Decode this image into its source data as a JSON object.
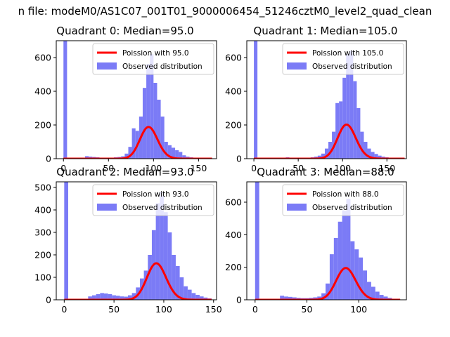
{
  "figure": {
    "suptitle": "n file: modeM0/AS1C07_001T01_9000006454_51246cztM0_level2_quad_clean"
  },
  "colors": {
    "histogram": "#7b7bf6",
    "poisson": "#ff0000",
    "axis": "#000000"
  },
  "chart_data": [
    {
      "type": "bar",
      "title": "Quadrant 0: Median=95.0",
      "xlim": [
        -8,
        170
      ],
      "ylim": [
        0,
        700
      ],
      "xticks": [
        0,
        50,
        100,
        150
      ],
      "yticks": [
        0,
        200,
        400,
        600
      ],
      "bin_width": 4,
      "hist": {
        "name": "Observed distribution",
        "x": [
          0,
          24,
          28,
          32,
          36,
          40,
          44,
          48,
          52,
          56,
          60,
          64,
          68,
          72,
          76,
          80,
          84,
          88,
          92,
          96,
          100,
          104,
          108,
          112,
          116,
          120,
          124,
          128,
          132,
          136,
          140,
          144,
          148,
          152,
          156,
          160
        ],
        "values": [
          700,
          15,
          12,
          10,
          8,
          6,
          5,
          5,
          6,
          8,
          10,
          14,
          30,
          70,
          180,
          165,
          250,
          420,
          560,
          620,
          450,
          350,
          250,
          100,
          80,
          65,
          50,
          40,
          20,
          12,
          8,
          6,
          4,
          3,
          2,
          1
        ]
      },
      "poisson": {
        "name": "Poission with 95.0",
        "lambda": 95.0,
        "scale": 4600,
        "x_range": [
          0,
          165
        ]
      },
      "legend": "top-right"
    },
    {
      "type": "bar",
      "title": "Quadrant 1: Median=105.0",
      "xlim": [
        -8,
        172
      ],
      "ylim": [
        0,
        700
      ],
      "xticks": [
        0,
        50,
        100,
        150
      ],
      "yticks": [
        0,
        200,
        400,
        600
      ],
      "bin_width": 4,
      "hist": {
        "name": "Observed distribution",
        "x": [
          0,
          36,
          40,
          44,
          48,
          52,
          56,
          60,
          64,
          68,
          72,
          76,
          80,
          84,
          88,
          92,
          96,
          100,
          104,
          108,
          112,
          116,
          120,
          124,
          128,
          132,
          136,
          140,
          144,
          148,
          152,
          156,
          160,
          164
        ],
        "values": [
          700,
          8,
          6,
          5,
          4,
          4,
          5,
          6,
          8,
          12,
          18,
          30,
          60,
          100,
          160,
          330,
          340,
          480,
          620,
          640,
          460,
          300,
          160,
          100,
          60,
          40,
          28,
          18,
          12,
          8,
          5,
          3,
          2,
          1
        ]
      },
      "poisson": {
        "name": "Poission with 105.0",
        "lambda": 105.0,
        "scale": 5200,
        "x_range": [
          0,
          170
        ]
      },
      "legend": "top-right"
    },
    {
      "type": "bar",
      "title": "Quadrant 2: Median=93.0",
      "xlim": [
        -8,
        153
      ],
      "ylim": [
        0,
        525
      ],
      "xticks": [
        0,
        50,
        100,
        150
      ],
      "yticks": [
        0,
        100,
        200,
        300,
        400,
        500
      ],
      "bin_width": 4,
      "hist": {
        "name": "Observed distribution",
        "x": [
          0,
          24,
          28,
          32,
          36,
          40,
          44,
          48,
          52,
          56,
          60,
          64,
          68,
          72,
          76,
          80,
          84,
          88,
          92,
          96,
          100,
          104,
          108,
          112,
          116,
          120,
          124,
          128,
          132,
          136,
          140,
          144
        ],
        "values": [
          525,
          15,
          20,
          25,
          30,
          28,
          25,
          20,
          18,
          15,
          14,
          20,
          30,
          55,
          95,
          130,
          200,
          310,
          430,
          480,
          390,
          300,
          200,
          150,
          100,
          60,
          45,
          30,
          22,
          15,
          10,
          6
        ]
      },
      "poisson": {
        "name": "Poission with 93.0",
        "lambda": 93.0,
        "scale": 3930,
        "x_range": [
          0,
          148
        ]
      },
      "legend": "top-right"
    },
    {
      "type": "bar",
      "title": "Quadrant 3: Median=88.0",
      "xlim": [
        -8,
        146
      ],
      "ylim": [
        0,
        725
      ],
      "xticks": [
        0,
        50,
        100
      ],
      "yticks": [
        0,
        200,
        400,
        600
      ],
      "bin_width": 4,
      "hist": {
        "name": "Observed distribution",
        "x": [
          0,
          24,
          28,
          32,
          36,
          40,
          44,
          48,
          52,
          56,
          60,
          64,
          68,
          72,
          76,
          80,
          84,
          88,
          92,
          96,
          100,
          104,
          108,
          112,
          116,
          120,
          124,
          128,
          132,
          136
        ],
        "values": [
          725,
          25,
          20,
          18,
          15,
          12,
          10,
          10,
          12,
          15,
          20,
          40,
          100,
          280,
          380,
          480,
          550,
          620,
          360,
          310,
          260,
          180,
          110,
          80,
          50,
          30,
          20,
          12,
          6,
          3
        ]
      },
      "poisson": {
        "name": "Poission with 88.0",
        "lambda": 88.0,
        "scale": 4600,
        "x_range": [
          0,
          140
        ]
      },
      "legend": "top-right"
    }
  ]
}
